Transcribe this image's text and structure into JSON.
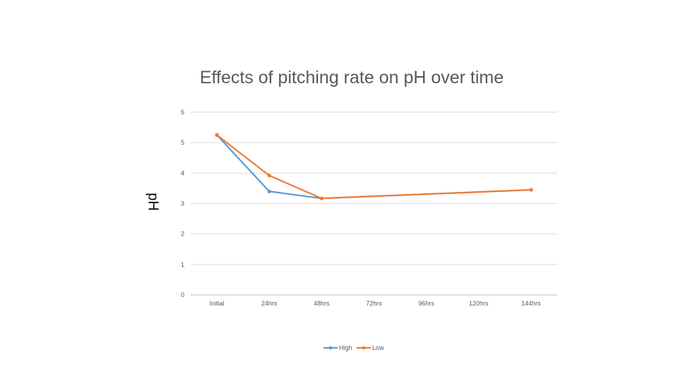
{
  "chart_data": {
    "type": "line",
    "title": "Effects of pitching rate on pH over time",
    "ylabel": "pH",
    "xlabel": "",
    "categories": [
      "Initial",
      "24hrs",
      "48hrs",
      "72hrs",
      "96hrs",
      "120hrs",
      "144hrs"
    ],
    "ylim": [
      0,
      6
    ],
    "yticks": [
      0,
      1,
      2,
      3,
      4,
      5,
      6
    ],
    "grid": true,
    "legend_position": "bottom",
    "series": [
      {
        "name": "High",
        "color": "#5b9bd5",
        "values": [
          5.25,
          3.4,
          3.17,
          null,
          null,
          null,
          3.45
        ]
      },
      {
        "name": "Low",
        "color": "#ed7d31",
        "values": [
          5.25,
          3.92,
          3.17,
          null,
          null,
          null,
          3.45
        ]
      }
    ]
  }
}
